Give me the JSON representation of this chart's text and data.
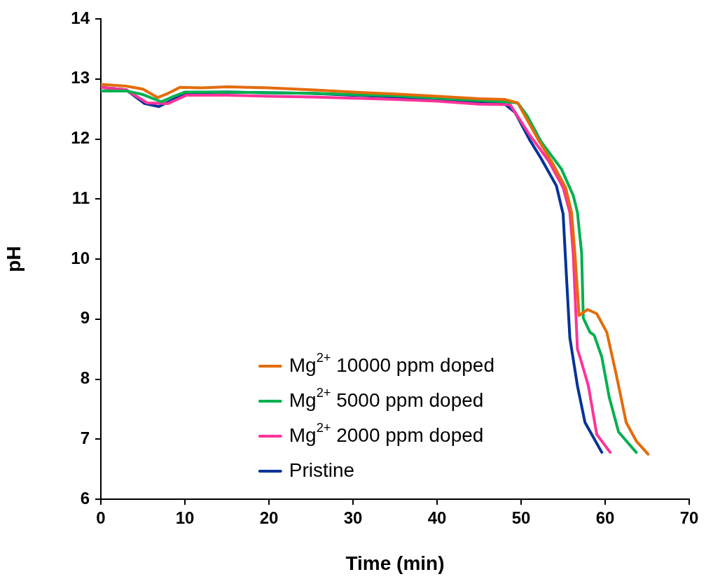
{
  "chart_data": {
    "type": "line",
    "xlabel": "Time (min)",
    "ylabel": "pH",
    "xlim": [
      0,
      70
    ],
    "xticks": [
      0,
      10,
      20,
      30,
      40,
      50,
      60,
      70
    ],
    "ylim": [
      6,
      14
    ],
    "yticks": [
      6,
      7,
      8,
      9,
      10,
      11,
      12,
      13,
      14
    ],
    "grid": false,
    "legend": "bottom",
    "marker": "none",
    "line_style": "solid",
    "series": [
      {
        "name": "Mg$^{2+}$ 10000 ppm doped",
        "color": "#e46c0a",
        "x": [
          0,
          3,
          5,
          6.75,
          8,
          9.4,
          12,
          15,
          20,
          25,
          30,
          35,
          40,
          45,
          48,
          49.6,
          52.2,
          53.6,
          55.3,
          56,
          56.4,
          56.9,
          57.9,
          59,
          60.2,
          61.3,
          62.5,
          63.7,
          65.1
        ],
        "values": [
          12.91,
          12.88,
          12.83,
          12.69,
          12.76,
          12.86,
          12.85,
          12.87,
          12.85,
          12.82,
          12.78,
          12.75,
          12.71,
          12.67,
          12.66,
          12.6,
          11.95,
          11.63,
          11.19,
          10.78,
          10.1,
          9.06,
          9.16,
          9.09,
          8.78,
          8.09,
          7.28,
          6.97,
          6.75
        ]
      },
      {
        "name": "Mg$^{2+}$ 5000 ppm doped",
        "color": "#00b050",
        "x": [
          0,
          3,
          5,
          7.2,
          8.5,
          10,
          15,
          20,
          25,
          30,
          35,
          40,
          45,
          48,
          49.6,
          50.7,
          52.4,
          54.8,
          56.2,
          56.7,
          57.2,
          57.4,
          58.2,
          58.7,
          59.6,
          60.5,
          61.6,
          63.7
        ],
        "values": [
          12.8,
          12.8,
          12.74,
          12.62,
          12.7,
          12.78,
          12.78,
          12.77,
          12.76,
          12.74,
          12.72,
          12.68,
          12.64,
          12.62,
          12.6,
          12.39,
          11.95,
          11.5,
          11.06,
          10.78,
          10.1,
          9.02,
          8.78,
          8.73,
          8.37,
          7.69,
          7.12,
          6.78
        ]
      },
      {
        "name": "Mg$^{2+}$ 2000 ppm doped",
        "color": "#ff3399",
        "x": [
          0,
          3,
          5.5,
          8,
          10.2,
          15,
          20,
          25,
          30,
          35,
          40,
          45,
          48.7,
          51,
          53.3,
          55,
          55.8,
          56.2,
          56.7,
          57,
          58,
          59,
          60.6
        ],
        "values": [
          12.86,
          12.82,
          12.6,
          12.59,
          12.73,
          12.73,
          12.71,
          12.7,
          12.68,
          12.66,
          12.63,
          12.58,
          12.57,
          12.07,
          11.63,
          11.19,
          10.78,
          10.1,
          8.5,
          8.37,
          7.89,
          7.08,
          6.78
        ]
      },
      {
        "name": "Pristine",
        "color": "#003399",
        "x": [
          0,
          3,
          5.2,
          6.9,
          8.5,
          10.2,
          15,
          20,
          25,
          30,
          35,
          40,
          45,
          47.8,
          49.3,
          51,
          52.4,
          54.2,
          55,
          55.4,
          55.8,
          56.7,
          57.6,
          59.6
        ],
        "values": [
          12.86,
          12.82,
          12.59,
          12.54,
          12.65,
          12.77,
          12.78,
          12.77,
          12.76,
          12.73,
          12.7,
          12.66,
          12.62,
          12.61,
          12.44,
          11.99,
          11.67,
          11.22,
          10.75,
          9.7,
          8.69,
          7.89,
          7.28,
          6.78
        ]
      }
    ]
  }
}
